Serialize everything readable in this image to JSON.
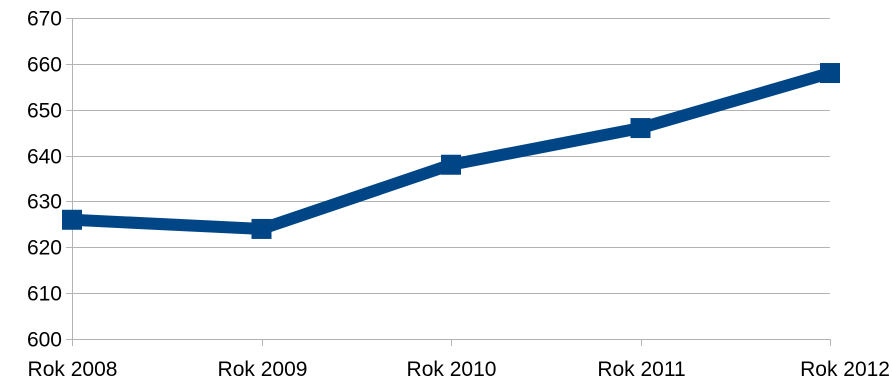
{
  "chart_data": {
    "type": "line",
    "title": "",
    "xlabel": "",
    "ylabel": "",
    "categories": [
      "Rok 2008",
      "Rok 2009",
      "Rok 2010",
      "Rok 2011",
      "Rok 2012"
    ],
    "series": [
      {
        "values": [
          626,
          624,
          638,
          646,
          658
        ],
        "color": "#004586",
        "marker": "square"
      }
    ],
    "ylim": [
      600,
      670
    ],
    "yticks": [
      600,
      610,
      620,
      630,
      640,
      650,
      660,
      670
    ],
    "grid": "horizontal",
    "legend": "none"
  }
}
